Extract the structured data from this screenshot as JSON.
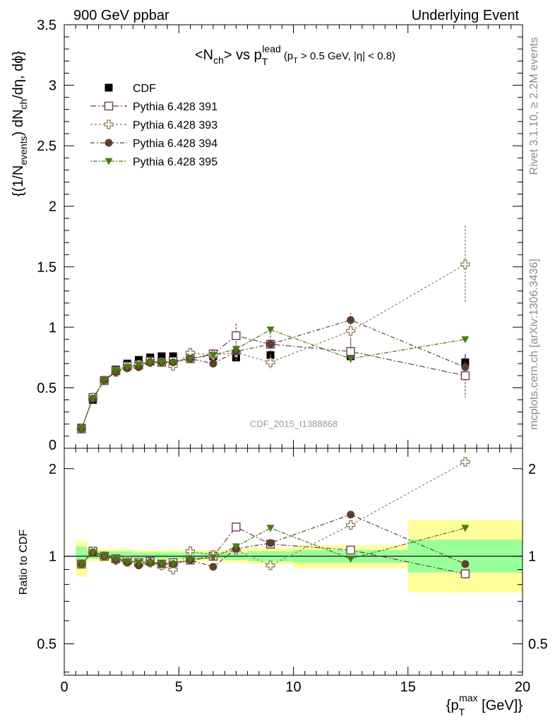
{
  "header": {
    "left": "900 GeV ppbar",
    "right": "Underlying Event",
    "side_rivet": "Rivet 3.1.10, ≥ 2.2M events",
    "side_mcplots": "mcplots.cern.ch [arXiv:1306.3436]",
    "watermark": "CDF_2015_I1388868"
  },
  "labels": {
    "title_main": "<N",
    "title_sub1": "ch",
    "title_mid": "> vs p",
    "title_sub2": "T",
    "title_sup2": "lead",
    "title_cut": "(p",
    "title_cut_sub": "T",
    "title_cut_rest": " > 0.5 GeV, |η| < 0.8)",
    "ylabel_top": "{(1/N",
    "ylabel_top_sub1": "events",
    "ylabel_top_mid": ") dN",
    "ylabel_top_sub2": "ch",
    "ylabel_top_end": "/dη, dϕ}",
    "ylabel_ratio": "Ratio to CDF",
    "xlabel_pre": "{p",
    "xlabel_sub": "T",
    "xlabel_sup": "max",
    "xlabel_post": " [GeV]}"
  },
  "colors": {
    "cdf": "#000000",
    "p391": "#6b3e5c",
    "p393": "#8c7a55",
    "p394": "#5e3f2e",
    "p395": "#4a7a10",
    "band_green": "#99ff99",
    "band_yellow": "#ffff99"
  },
  "chart_data": [
    {
      "type": "scatter",
      "panel": "main",
      "xlim": [
        0,
        20
      ],
      "ylim": [
        0,
        3.5
      ],
      "yticks": [
        "0",
        "0.5",
        "1",
        "1.5",
        "2",
        "2.5",
        "3",
        "3.5"
      ],
      "x": [
        0.75,
        1.25,
        1.75,
        2.25,
        2.75,
        3.25,
        3.75,
        4.25,
        4.75,
        5.5,
        6.5,
        7.5,
        9.0,
        12.5,
        17.5
      ],
      "series": [
        {
          "name": "CDF",
          "marker": "filled-square",
          "values": [
            0.17,
            0.4,
            0.56,
            0.65,
            0.7,
            0.73,
            0.75,
            0.76,
            0.76,
            0.76,
            0.76,
            0.75,
            0.77,
            0.76,
            0.71
          ],
          "errors": [
            0.005,
            0.005,
            0.005,
            0.005,
            0.005,
            0.005,
            0.005,
            0.008,
            0.008,
            0.01,
            0.015,
            0.02,
            0.025,
            0.04,
            0.06
          ]
        },
        {
          "name": "Pythia 6.428 391",
          "marker": "open-square",
          "values": [
            0.16,
            0.42,
            0.56,
            0.64,
            0.68,
            0.69,
            0.72,
            0.71,
            0.72,
            0.74,
            0.78,
            0.93,
            0.86,
            0.8,
            0.6
          ],
          "errors": [
            0.005,
            0.01,
            0.01,
            0.01,
            0.01,
            0.01,
            0.015,
            0.015,
            0.02,
            0.02,
            0.04,
            0.1,
            0.1,
            0.1,
            0.18
          ]
        },
        {
          "name": "Pythia 6.428 393",
          "marker": "open-cross",
          "values": [
            0.16,
            0.42,
            0.56,
            0.63,
            0.67,
            0.69,
            0.71,
            0.71,
            0.68,
            0.79,
            0.77,
            0.79,
            0.71,
            0.97,
            1.52
          ],
          "errors": [
            0.005,
            0.01,
            0.01,
            0.01,
            0.01,
            0.01,
            0.015,
            0.015,
            0.02,
            0.03,
            0.05,
            0.07,
            0.06,
            0.15,
            0.32
          ]
        },
        {
          "name": "Pythia 6.428 394",
          "marker": "filled-circle",
          "values": [
            0.16,
            0.41,
            0.56,
            0.63,
            0.66,
            0.67,
            0.71,
            0.71,
            0.71,
            0.74,
            0.7,
            0.8,
            0.86,
            1.06,
            0.67
          ]
        },
        {
          "name": "Pythia 6.428 395",
          "marker": "filled-triangle-down",
          "values": [
            0.16,
            0.41,
            0.56,
            0.64,
            0.67,
            0.69,
            0.71,
            0.71,
            0.71,
            0.74,
            0.77,
            0.82,
            0.98,
            0.74,
            0.9
          ]
        }
      ]
    },
    {
      "type": "scatter",
      "panel": "ratio",
      "ylabel": "Ratio to CDF",
      "xlim": [
        0,
        20
      ],
      "ylim": [
        0.39,
        2.35
      ],
      "yticks": [
        "0.5",
        "1",
        "2"
      ],
      "xticks": [
        "0",
        "5",
        "10",
        "15",
        "20"
      ],
      "bands": [
        {
          "x": [
            0.5,
            1.0
          ],
          "green": [
            0.96,
            1.08
          ],
          "yellow": [
            0.85,
            1.13
          ]
        },
        {
          "x": [
            1.0,
            3.0
          ],
          "green": [
            0.98,
            1.04
          ],
          "yellow": [
            0.96,
            1.06
          ]
        },
        {
          "x": [
            3.0,
            5.0
          ],
          "green": [
            0.98,
            1.03
          ],
          "yellow": [
            0.96,
            1.05
          ]
        },
        {
          "x": [
            5.0,
            7.0
          ],
          "green": [
            0.98,
            1.03
          ],
          "yellow": [
            0.96,
            1.05
          ]
        },
        {
          "x": [
            7.0,
            8.0
          ],
          "green": [
            0.97,
            1.03
          ],
          "yellow": [
            0.95,
            1.05
          ]
        },
        {
          "x": [
            8.0,
            10.0
          ],
          "green": [
            0.96,
            1.04
          ],
          "yellow": [
            0.94,
            1.07
          ]
        },
        {
          "x": [
            10.0,
            15.0
          ],
          "green": [
            0.95,
            1.05
          ],
          "yellow": [
            0.91,
            1.09
          ]
        },
        {
          "x": [
            15.0,
            20.0
          ],
          "green": [
            0.88,
            1.14
          ],
          "yellow": [
            0.75,
            1.33
          ]
        }
      ],
      "x": [
        0.75,
        1.25,
        1.75,
        2.25,
        2.75,
        3.25,
        3.75,
        4.25,
        4.75,
        5.5,
        6.5,
        7.5,
        9.0,
        12.5,
        17.5
      ],
      "series": [
        {
          "name": "Pythia 6.428 391",
          "values": [
            0.94,
            1.04,
            1.0,
            0.98,
            0.97,
            0.95,
            0.96,
            0.94,
            0.95,
            0.97,
            1.0,
            1.26,
            1.1,
            1.05,
            0.87
          ]
        },
        {
          "name": "Pythia 6.428 393",
          "values": [
            0.94,
            1.04,
            1.0,
            0.97,
            0.96,
            0.95,
            0.95,
            0.93,
            0.9,
            1.04,
            1.01,
            1.05,
            0.93,
            1.28,
            2.11
          ]
        },
        {
          "name": "Pythia 6.428 394",
          "values": [
            0.94,
            1.03,
            1.0,
            0.97,
            0.95,
            0.93,
            0.95,
            0.94,
            0.94,
            0.97,
            0.92,
            1.06,
            1.11,
            1.39,
            0.94
          ]
        },
        {
          "name": "Pythia 6.428 395",
          "values": [
            0.94,
            1.03,
            1.0,
            0.98,
            0.96,
            0.95,
            0.95,
            0.94,
            0.94,
            0.97,
            0.99,
            1.08,
            1.25,
            0.98,
            1.25
          ]
        }
      ]
    }
  ]
}
